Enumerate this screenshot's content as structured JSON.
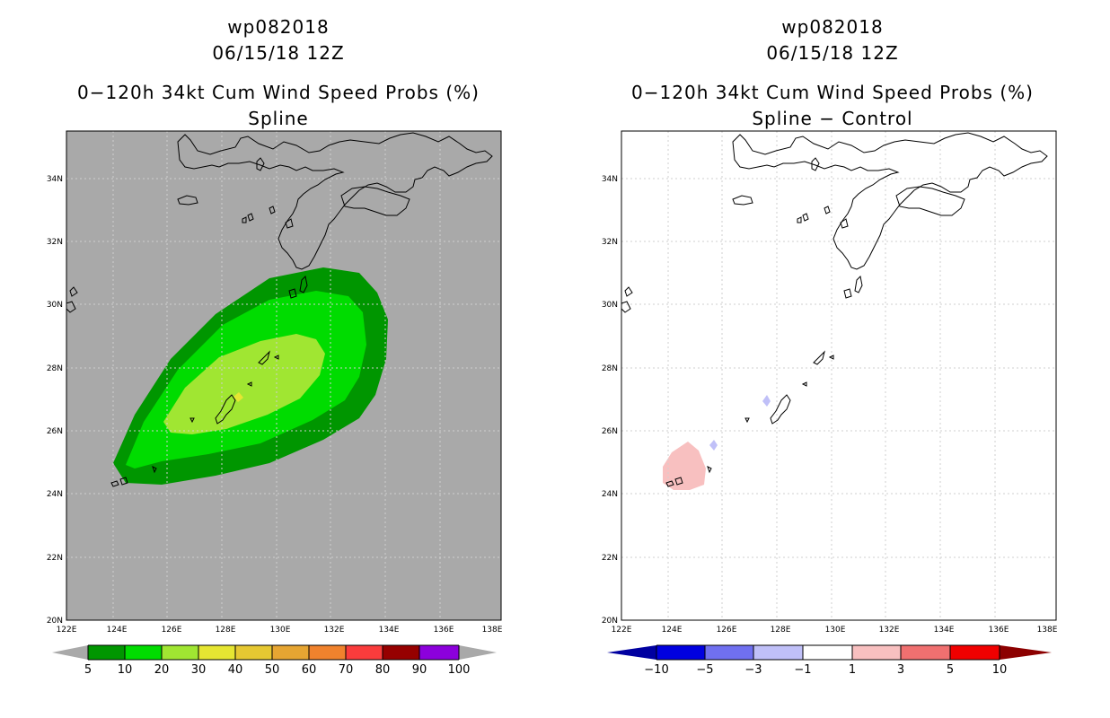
{
  "left_panel": {
    "storm_id": "wp082018",
    "datetime": "06/15/18 12Z",
    "product": "0−120h 34kt Cum Wind Speed Probs (%)",
    "method": "Spline",
    "background_color": "#a9a9a9",
    "colorbar": {
      "colors": [
        "#009600",
        "#00dc00",
        "#a0e632",
        "#e6e632",
        "#e6c832",
        "#e6a532",
        "#f0822d",
        "#fa3c3c",
        "#960000",
        "#8c00dc"
      ],
      "end_color": "#a9a9a9",
      "labels": [
        "5",
        "10",
        "20",
        "30",
        "40",
        "50",
        "60",
        "70",
        "80",
        "90",
        "100"
      ]
    }
  },
  "right_panel": {
    "storm_id": "wp082018",
    "datetime": "06/15/18 12Z",
    "product": "0−120h 34kt Cum Wind Speed Probs (%)",
    "method": "Spline − Control",
    "colorbar": {
      "colors": [
        "#0000e0",
        "#7070f0",
        "#c0c0f8",
        "#ffffff",
        "#f8c0c0",
        "#f07070",
        "#f00000"
      ],
      "low_end_color": "#0000a0",
      "high_end_color": "#8c0000",
      "labels": [
        "−10",
        "−5",
        "−3",
        "−1",
        "1",
        "3",
        "5",
        "10"
      ]
    }
  },
  "lat_labels": [
    "34N",
    "32N",
    "30N",
    "28N",
    "26N",
    "24N",
    "22N",
    "20N"
  ],
  "lon_labels": [
    "122E",
    "124E",
    "126E",
    "128E",
    "130E",
    "132E",
    "134E",
    "136E",
    "138E"
  ],
  "map_extent": {
    "lon_min": 122,
    "lon_max": 138,
    "lat_min": 20,
    "lat_max": 35.5
  }
}
